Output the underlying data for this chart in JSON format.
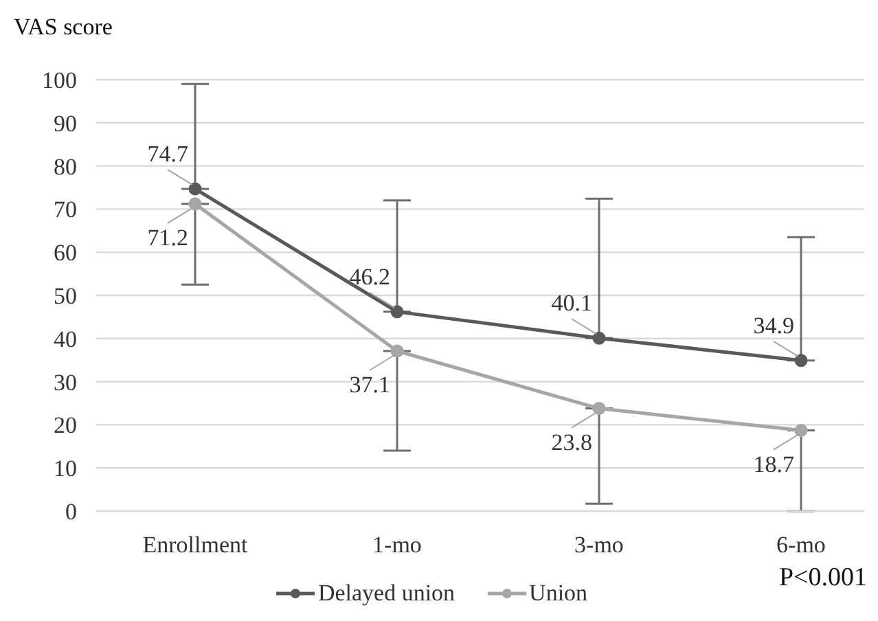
{
  "chart_data": {
    "type": "line",
    "ylabel": "VAS score",
    "categories": [
      "Enrollment",
      "1-mo",
      "3-mo",
      "6-mo"
    ],
    "series": [
      {
        "name": "Delayed union",
        "color": "#595959",
        "values": [
          74.7,
          46.2,
          40.1,
          34.9
        ],
        "errors": [
          [
            74.7,
            99
          ],
          [
            46.2,
            72
          ],
          [
            40.1,
            72.4
          ],
          [
            34.9,
            63.5
          ]
        ]
      },
      {
        "name": "Union",
        "color": "#a6a6a6",
        "values": [
          71.2,
          37.1,
          23.8,
          18.7
        ],
        "errors": [
          [
            52.5,
            71.2
          ],
          [
            14,
            37.1
          ],
          [
            1.7,
            23.8
          ],
          [
            0,
            18.7
          ]
        ]
      }
    ],
    "ylim": [
      0,
      100
    ],
    "yticks": [
      0,
      10,
      20,
      30,
      40,
      50,
      60,
      70,
      80,
      90,
      100
    ],
    "grid": "y",
    "legend": "bottom",
    "marker": "circle",
    "line_style": "solid",
    "data_labels": true,
    "annotations": [
      "P<0.001"
    ]
  }
}
